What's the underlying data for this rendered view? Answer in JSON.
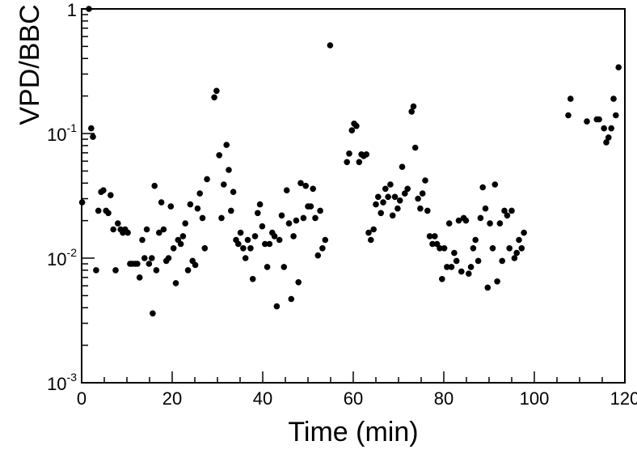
{
  "chart_data": {
    "type": "scatter",
    "title": "",
    "xlabel": "Time (min)",
    "ylabel": "VPD/BBC",
    "xlim": [
      0,
      120
    ],
    "ylim": [
      0.001,
      1
    ],
    "y_scale": "log",
    "grid": false,
    "legend": "none",
    "marker_color": "#000000",
    "x_ticks": [
      {
        "value": 0,
        "label": "0"
      },
      {
        "value": 20,
        "label": "20"
      },
      {
        "value": 40,
        "label": "40"
      },
      {
        "value": 60,
        "label": "60"
      },
      {
        "value": 80,
        "label": "80"
      },
      {
        "value": 100,
        "label": "100"
      },
      {
        "value": 120,
        "label": "120"
      }
    ],
    "y_ticks": [
      {
        "value": 0.001,
        "base": "10",
        "exp": "-3"
      },
      {
        "value": 0.01,
        "base": "10",
        "exp": "-2"
      },
      {
        "value": 0.1,
        "base": "10",
        "exp": "-1"
      },
      {
        "value": 1,
        "base": "1",
        "exp": ""
      }
    ],
    "points": [
      {
        "x": 0.1,
        "y": 0.028
      },
      {
        "x": 1.6,
        "y": 1.0
      },
      {
        "x": 2.1,
        "y": 0.11
      },
      {
        "x": 2.5,
        "y": 0.094
      },
      {
        "x": 3.2,
        "y": 0.008
      },
      {
        "x": 3.7,
        "y": 0.024
      },
      {
        "x": 4.3,
        "y": 0.034
      },
      {
        "x": 4.8,
        "y": 0.035
      },
      {
        "x": 5.4,
        "y": 0.024
      },
      {
        "x": 5.9,
        "y": 0.023
      },
      {
        "x": 6.4,
        "y": 0.032
      },
      {
        "x": 7.0,
        "y": 0.017
      },
      {
        "x": 7.5,
        "y": 0.008
      },
      {
        "x": 8.0,
        "y": 0.019
      },
      {
        "x": 8.6,
        "y": 0.017
      },
      {
        "x": 9.1,
        "y": 0.016
      },
      {
        "x": 9.6,
        "y": 0.017
      },
      {
        "x": 10.2,
        "y": 0.016
      },
      {
        "x": 10.7,
        "y": 0.009
      },
      {
        "x": 11.2,
        "y": 0.009
      },
      {
        "x": 11.8,
        "y": 0.009
      },
      {
        "x": 12.3,
        "y": 0.009
      },
      {
        "x": 12.8,
        "y": 0.007
      },
      {
        "x": 13.4,
        "y": 0.014
      },
      {
        "x": 13.9,
        "y": 0.01
      },
      {
        "x": 14.4,
        "y": 0.017
      },
      {
        "x": 14.9,
        "y": 0.009
      },
      {
        "x": 15.5,
        "y": 0.01
      },
      {
        "x": 15.7,
        "y": 0.0036
      },
      {
        "x": 16.1,
        "y": 0.038
      },
      {
        "x": 16.5,
        "y": 0.008
      },
      {
        "x": 17.1,
        "y": 0.016
      },
      {
        "x": 17.6,
        "y": 0.028
      },
      {
        "x": 18.1,
        "y": 0.017
      },
      {
        "x": 18.7,
        "y": 0.0095
      },
      {
        "x": 19.2,
        "y": 0.01
      },
      {
        "x": 19.7,
        "y": 0.026
      },
      {
        "x": 20.3,
        "y": 0.012
      },
      {
        "x": 20.8,
        "y": 0.0063
      },
      {
        "x": 21.3,
        "y": 0.014
      },
      {
        "x": 21.9,
        "y": 0.013
      },
      {
        "x": 22.4,
        "y": 0.015
      },
      {
        "x": 22.9,
        "y": 0.019
      },
      {
        "x": 23.5,
        "y": 0.008
      },
      {
        "x": 24.0,
        "y": 0.027
      },
      {
        "x": 24.5,
        "y": 0.0095
      },
      {
        "x": 25.1,
        "y": 0.0088
      },
      {
        "x": 25.6,
        "y": 0.025
      },
      {
        "x": 26.1,
        "y": 0.033
      },
      {
        "x": 26.7,
        "y": 0.021
      },
      {
        "x": 27.2,
        "y": 0.012
      },
      {
        "x": 27.7,
        "y": 0.043
      },
      {
        "x": 29.3,
        "y": 0.195
      },
      {
        "x": 29.8,
        "y": 0.22
      },
      {
        "x": 30.4,
        "y": 0.067
      },
      {
        "x": 30.9,
        "y": 0.021
      },
      {
        "x": 31.4,
        "y": 0.039
      },
      {
        "x": 32.0,
        "y": 0.081
      },
      {
        "x": 32.5,
        "y": 0.051
      },
      {
        "x": 33.0,
        "y": 0.024
      },
      {
        "x": 33.5,
        "y": 0.034
      },
      {
        "x": 34.1,
        "y": 0.014
      },
      {
        "x": 34.6,
        "y": 0.013
      },
      {
        "x": 35.1,
        "y": 0.016
      },
      {
        "x": 35.7,
        "y": 0.012
      },
      {
        "x": 36.2,
        "y": 0.01
      },
      {
        "x": 36.7,
        "y": 0.014
      },
      {
        "x": 37.3,
        "y": 0.012
      },
      {
        "x": 37.8,
        "y": 0.0068
      },
      {
        "x": 38.3,
        "y": 0.015
      },
      {
        "x": 38.9,
        "y": 0.023
      },
      {
        "x": 39.4,
        "y": 0.027
      },
      {
        "x": 39.9,
        "y": 0.018
      },
      {
        "x": 40.5,
        "y": 0.013
      },
      {
        "x": 41.0,
        "y": 0.0085
      },
      {
        "x": 41.5,
        "y": 0.013
      },
      {
        "x": 42.1,
        "y": 0.016
      },
      {
        "x": 42.6,
        "y": 0.015
      },
      {
        "x": 43.1,
        "y": 0.0041
      },
      {
        "x": 43.7,
        "y": 0.014
      },
      {
        "x": 44.2,
        "y": 0.022
      },
      {
        "x": 44.7,
        "y": 0.0085
      },
      {
        "x": 45.3,
        "y": 0.035
      },
      {
        "x": 45.8,
        "y": 0.019
      },
      {
        "x": 46.3,
        "y": 0.0047
      },
      {
        "x": 46.8,
        "y": 0.015
      },
      {
        "x": 47.4,
        "y": 0.02
      },
      {
        "x": 47.9,
        "y": 0.0064
      },
      {
        "x": 48.4,
        "y": 0.04
      },
      {
        "x": 49.0,
        "y": 0.021
      },
      {
        "x": 49.5,
        "y": 0.038
      },
      {
        "x": 50.0,
        "y": 0.026
      },
      {
        "x": 50.6,
        "y": 0.026
      },
      {
        "x": 51.1,
        "y": 0.036
      },
      {
        "x": 51.6,
        "y": 0.021
      },
      {
        "x": 52.2,
        "y": 0.0105
      },
      {
        "x": 52.7,
        "y": 0.024
      },
      {
        "x": 53.2,
        "y": 0.012
      },
      {
        "x": 53.8,
        "y": 0.014
      },
      {
        "x": 54.9,
        "y": 0.51
      },
      {
        "x": 58.6,
        "y": 0.059
      },
      {
        "x": 59.1,
        "y": 0.069
      },
      {
        "x": 59.7,
        "y": 0.106
      },
      {
        "x": 60.2,
        "y": 0.12
      },
      {
        "x": 60.7,
        "y": 0.115
      },
      {
        "x": 61.3,
        "y": 0.059
      },
      {
        "x": 61.8,
        "y": 0.068
      },
      {
        "x": 62.3,
        "y": 0.066
      },
      {
        "x": 62.9,
        "y": 0.068
      },
      {
        "x": 63.4,
        "y": 0.016
      },
      {
        "x": 63.9,
        "y": 0.014
      },
      {
        "x": 64.5,
        "y": 0.017
      },
      {
        "x": 65.0,
        "y": 0.027
      },
      {
        "x": 65.5,
        "y": 0.031
      },
      {
        "x": 66.1,
        "y": 0.023
      },
      {
        "x": 66.6,
        "y": 0.028
      },
      {
        "x": 67.1,
        "y": 0.036
      },
      {
        "x": 67.7,
        "y": 0.031
      },
      {
        "x": 68.2,
        "y": 0.039
      },
      {
        "x": 68.7,
        "y": 0.022
      },
      {
        "x": 69.2,
        "y": 0.031
      },
      {
        "x": 69.8,
        "y": 0.025
      },
      {
        "x": 70.3,
        "y": 0.029
      },
      {
        "x": 70.8,
        "y": 0.054
      },
      {
        "x": 71.4,
        "y": 0.033
      },
      {
        "x": 72.0,
        "y": 0.036
      },
      {
        "x": 72.9,
        "y": 0.15
      },
      {
        "x": 73.3,
        "y": 0.165
      },
      {
        "x": 73.7,
        "y": 0.077
      },
      {
        "x": 74.3,
        "y": 0.03
      },
      {
        "x": 74.8,
        "y": 0.025
      },
      {
        "x": 75.3,
        "y": 0.033
      },
      {
        "x": 75.9,
        "y": 0.042
      },
      {
        "x": 76.4,
        "y": 0.024
      },
      {
        "x": 76.9,
        "y": 0.015
      },
      {
        "x": 77.5,
        "y": 0.013
      },
      {
        "x": 78.0,
        "y": 0.015
      },
      {
        "x": 78.5,
        "y": 0.013
      },
      {
        "x": 79.1,
        "y": 0.012
      },
      {
        "x": 79.6,
        "y": 0.0068
      },
      {
        "x": 80.1,
        "y": 0.012
      },
      {
        "x": 80.7,
        "y": 0.0085
      },
      {
        "x": 81.2,
        "y": 0.019
      },
      {
        "x": 81.7,
        "y": 0.0085
      },
      {
        "x": 82.3,
        "y": 0.011
      },
      {
        "x": 82.8,
        "y": 0.0095
      },
      {
        "x": 83.3,
        "y": 0.02
      },
      {
        "x": 83.9,
        "y": 0.0078
      },
      {
        "x": 84.4,
        "y": 0.021
      },
      {
        "x": 84.9,
        "y": 0.02
      },
      {
        "x": 85.5,
        "y": 0.0075
      },
      {
        "x": 86.0,
        "y": 0.0085
      },
      {
        "x": 86.5,
        "y": 0.012
      },
      {
        "x": 87.0,
        "y": 0.014
      },
      {
        "x": 87.6,
        "y": 0.0095
      },
      {
        "x": 88.1,
        "y": 0.021
      },
      {
        "x": 88.6,
        "y": 0.037
      },
      {
        "x": 89.2,
        "y": 0.025
      },
      {
        "x": 89.7,
        "y": 0.0058
      },
      {
        "x": 90.2,
        "y": 0.019
      },
      {
        "x": 90.8,
        "y": 0.012
      },
      {
        "x": 91.3,
        "y": 0.039
      },
      {
        "x": 91.8,
        "y": 0.0065
      },
      {
        "x": 92.4,
        "y": 0.019
      },
      {
        "x": 92.9,
        "y": 0.0095
      },
      {
        "x": 93.4,
        "y": 0.024
      },
      {
        "x": 94.0,
        "y": 0.022
      },
      {
        "x": 94.5,
        "y": 0.012
      },
      {
        "x": 95.0,
        "y": 0.024
      },
      {
        "x": 95.6,
        "y": 0.01
      },
      {
        "x": 96.1,
        "y": 0.011
      },
      {
        "x": 96.6,
        "y": 0.014
      },
      {
        "x": 97.2,
        "y": 0.012
      },
      {
        "x": 97.7,
        "y": 0.016
      },
      {
        "x": 107.5,
        "y": 0.14
      },
      {
        "x": 108.0,
        "y": 0.19
      },
      {
        "x": 111.6,
        "y": 0.125
      },
      {
        "x": 113.8,
        "y": 0.13
      },
      {
        "x": 114.3,
        "y": 0.13
      },
      {
        "x": 115.4,
        "y": 0.11
      },
      {
        "x": 115.9,
        "y": 0.085
      },
      {
        "x": 116.4,
        "y": 0.093
      },
      {
        "x": 117.0,
        "y": 0.11
      },
      {
        "x": 117.5,
        "y": 0.19
      },
      {
        "x": 118.0,
        "y": 0.14
      },
      {
        "x": 118.6,
        "y": 0.34
      }
    ]
  }
}
